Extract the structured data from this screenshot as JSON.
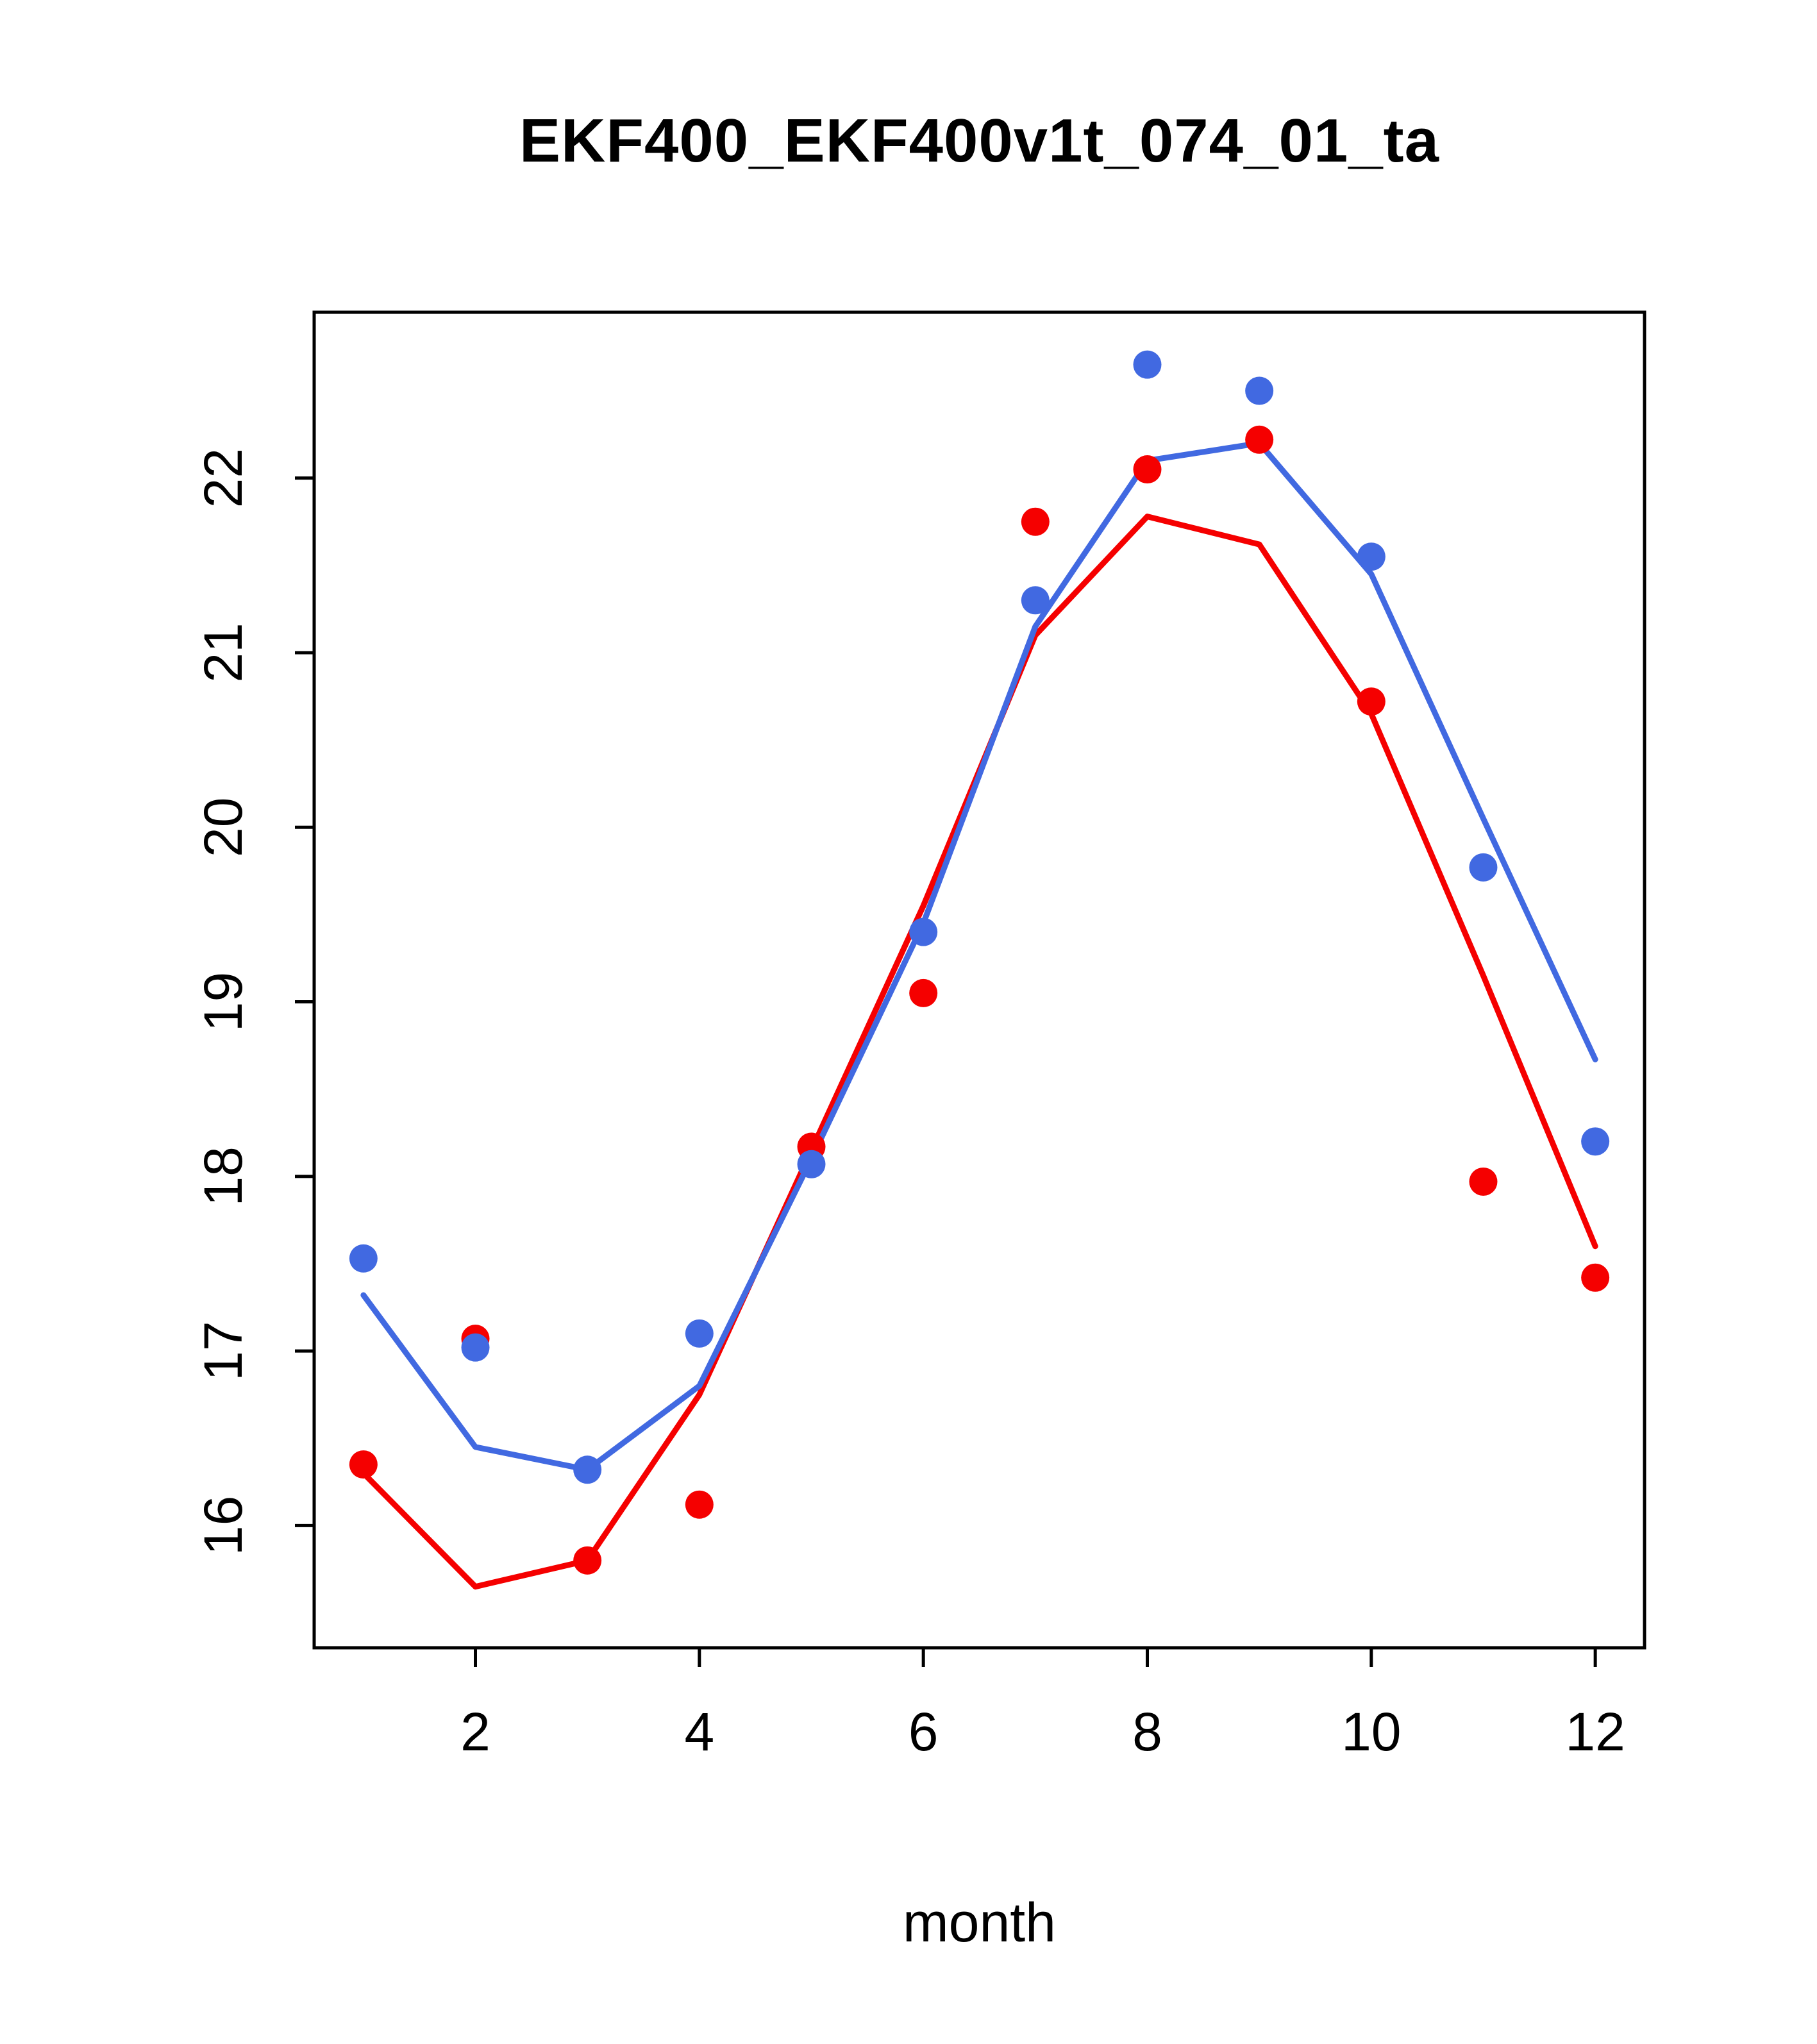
{
  "title": "EKF400_EKF400v1t_074_01_ta",
  "xlabel": "month",
  "colors": {
    "series_blue": "#4169E1",
    "series_red": "#F50000",
    "axis": "#000000"
  },
  "chart_data": {
    "type": "scatter",
    "title": "EKF400_EKF400v1t_074_01_ta",
    "xlabel": "month",
    "ylabel": "",
    "x": [
      1,
      2,
      3,
      4,
      5,
      6,
      7,
      8,
      9,
      10,
      11,
      12
    ],
    "xticks": [
      2,
      4,
      6,
      8,
      10,
      12
    ],
    "yticks": [
      16,
      17,
      18,
      19,
      20,
      21,
      22
    ],
    "xlim": [
      0.56,
      12.44
    ],
    "ylim": [
      15.3,
      22.95
    ],
    "grid": false,
    "legend": null,
    "series": [
      {
        "name": "red-line",
        "kind": "line",
        "color": "#F50000",
        "values": [
          16.3,
          15.65,
          15.8,
          16.75,
          18.15,
          19.55,
          21.1,
          21.78,
          21.62,
          20.65,
          19.15,
          17.6
        ]
      },
      {
        "name": "blue-line",
        "kind": "line",
        "color": "#4169E1",
        "values": [
          17.32,
          16.45,
          16.32,
          16.8,
          18.1,
          19.45,
          21.15,
          22.1,
          22.2,
          21.45,
          20.05,
          18.67
        ]
      },
      {
        "name": "red-points",
        "kind": "points",
        "color": "#F50000",
        "values": [
          16.35,
          17.07,
          15.8,
          16.12,
          18.17,
          19.05,
          21.75,
          22.05,
          22.22,
          20.72,
          17.97,
          17.42
        ]
      },
      {
        "name": "blue-points",
        "kind": "points",
        "color": "#4169E1",
        "values": [
          17.53,
          17.02,
          16.32,
          17.1,
          18.07,
          19.4,
          21.3,
          22.65,
          22.5,
          21.55,
          19.77,
          18.2
        ]
      }
    ]
  }
}
